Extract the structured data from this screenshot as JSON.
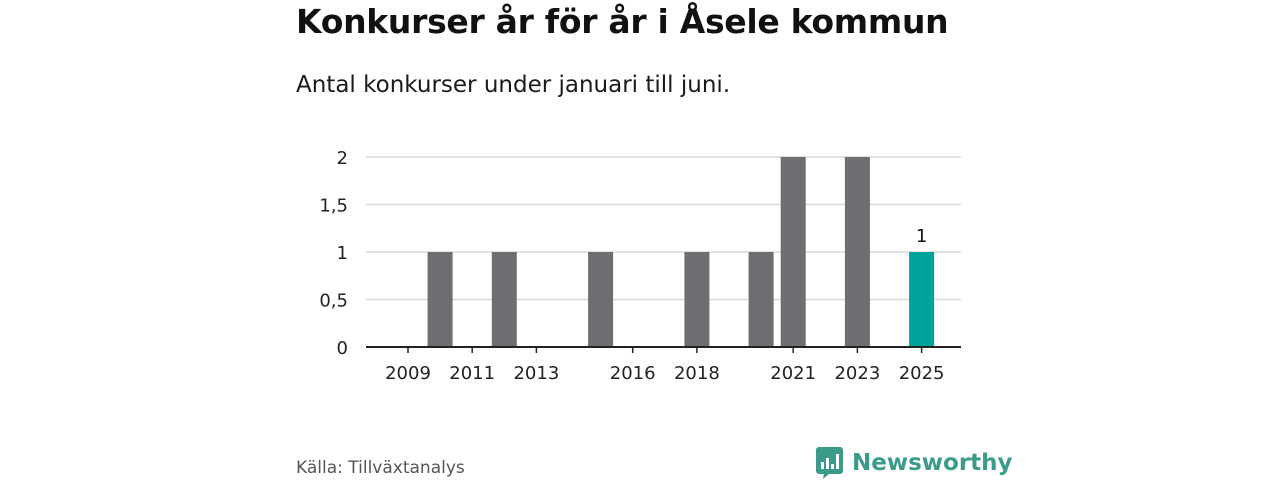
{
  "header": {
    "title": "Konkurser år för år i Åsele kommun",
    "subtitle": "Antal konkurser under januari till juni."
  },
  "footer": {
    "source": "Källa: Tillväxtanalys",
    "brand": "Newsworthy",
    "brand_icon": "bar-chart-speech-bubble-icon"
  },
  "colors": {
    "bar_default": "#6e6d72",
    "bar_highlight": "#00a39a",
    "gridline": "#d9d9d9",
    "axis": "#222222",
    "brand": "#3a9b8b"
  },
  "chart_data": {
    "type": "bar",
    "title": "Konkurser år för år i Åsele kommun",
    "subtitle": "Antal konkurser under januari till juni.",
    "categories": [
      "2009",
      "2010",
      "2011",
      "2012",
      "2013",
      "2014",
      "2015",
      "2016",
      "2017",
      "2018",
      "2019",
      "2020",
      "2021",
      "2022",
      "2023",
      "2024",
      "2025"
    ],
    "values": [
      0,
      1,
      0,
      1,
      0,
      0,
      1,
      0,
      0,
      1,
      0,
      1,
      2,
      0,
      2,
      0,
      1
    ],
    "highlight_category": "2025",
    "data_labels": [
      {
        "category": "2025",
        "text": "1"
      }
    ],
    "x_tick_labels": [
      "2009",
      "2011",
      "2013",
      "2016",
      "2018",
      "2021",
      "2023",
      "2025"
    ],
    "y_ticks": [
      0,
      0.5,
      1,
      1.5,
      2
    ],
    "y_tick_labels": [
      "0",
      "0,5",
      "1",
      "1,5",
      "2"
    ],
    "ylim": [
      0,
      2
    ],
    "xlabel": "",
    "ylabel": "",
    "grid": true,
    "legend": "none"
  }
}
